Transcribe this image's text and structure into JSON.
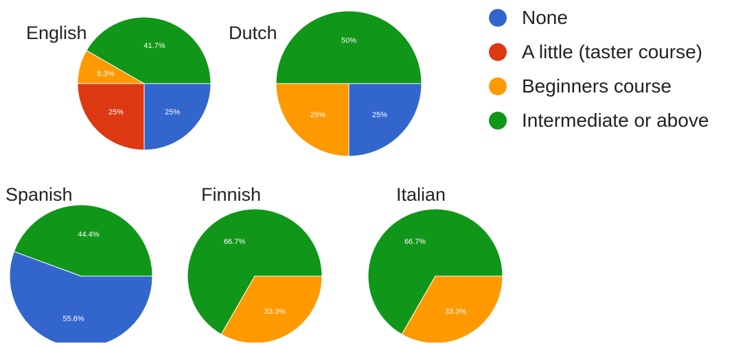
{
  "colors": {
    "None": "#3366cc",
    "A little (taster course)": "#dc3912",
    "Beginners course": "#ff9900",
    "Intermediate or above": "#109618"
  },
  "legend": {
    "placement": "top-right",
    "items": [
      "None",
      "A little (taster course)",
      "Beginners course",
      "Intermediate or above"
    ]
  },
  "chart_data": [
    {
      "type": "pie",
      "title": "English",
      "slices": [
        {
          "label": "Intermediate or above",
          "value": 41.7,
          "text": "41.7%"
        },
        {
          "label": "Beginners course",
          "value": 8.3,
          "text": "8.3%"
        },
        {
          "label": "A little (taster course)",
          "value": 25,
          "text": "25%"
        },
        {
          "label": "None",
          "value": 25,
          "text": "25%"
        }
      ]
    },
    {
      "type": "pie",
      "title": "Dutch",
      "slices": [
        {
          "label": "Intermediate or above",
          "value": 50,
          "text": "50%"
        },
        {
          "label": "Beginners course",
          "value": 25,
          "text": "25%"
        },
        {
          "label": "None",
          "value": 25,
          "text": "25%"
        }
      ]
    },
    {
      "type": "pie",
      "title": "Spanish",
      "slices": [
        {
          "label": "Intermediate or above",
          "value": 44.4,
          "text": "44.4%"
        },
        {
          "label": "None",
          "value": 55.6,
          "text": "55.6%"
        }
      ]
    },
    {
      "type": "pie",
      "title": "Finnish",
      "slices": [
        {
          "label": "Intermediate or above",
          "value": 66.7,
          "text": "66.7%"
        },
        {
          "label": "Beginners course",
          "value": 33.3,
          "text": "33.3%"
        }
      ]
    },
    {
      "type": "pie",
      "title": "Italian",
      "slices": [
        {
          "label": "Intermediate or above",
          "value": 66.7,
          "text": "66.7%"
        },
        {
          "label": "Beginners course",
          "value": 33.3,
          "text": "33.3%"
        }
      ]
    }
  ]
}
